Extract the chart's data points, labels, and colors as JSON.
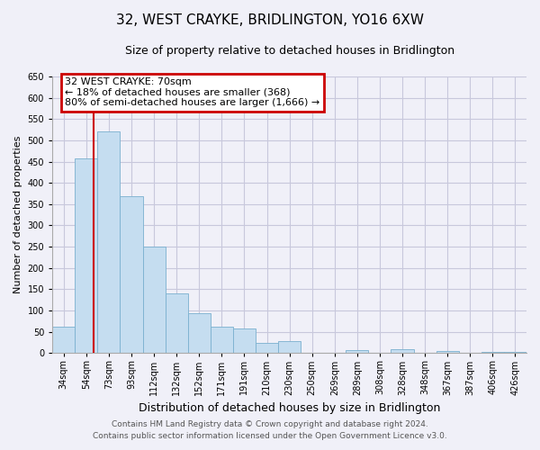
{
  "title": "32, WEST CRAYKE, BRIDLINGTON, YO16 6XW",
  "subtitle": "Size of property relative to detached houses in Bridlington",
  "xlabel": "Distribution of detached houses by size in Bridlington",
  "ylabel": "Number of detached properties",
  "categories": [
    "34sqm",
    "54sqm",
    "73sqm",
    "93sqm",
    "112sqm",
    "132sqm",
    "152sqm",
    "171sqm",
    "191sqm",
    "210sqm",
    "230sqm",
    "250sqm",
    "269sqm",
    "289sqm",
    "308sqm",
    "328sqm",
    "348sqm",
    "367sqm",
    "387sqm",
    "406sqm",
    "426sqm"
  ],
  "values": [
    62,
    457,
    522,
    368,
    250,
    140,
    93,
    62,
    57,
    25,
    28,
    0,
    0,
    8,
    0,
    10,
    0,
    5,
    0,
    3,
    3
  ],
  "bar_color": "#c5ddf0",
  "bar_edge_color": "#7ab0cf",
  "property_line_label": "32 WEST CRAYKE: 70sqm",
  "annotation_line1": "← 18% of detached houses are smaller (368)",
  "annotation_line2": "80% of semi-detached houses are larger (1,666) →",
  "annotation_box_color": "#ffffff",
  "annotation_box_edge": "#cc0000",
  "ylim": [
    0,
    650
  ],
  "yticks": [
    0,
    50,
    100,
    150,
    200,
    250,
    300,
    350,
    400,
    450,
    500,
    550,
    600,
    650
  ],
  "red_line_color": "#cc0000",
  "footer_line1": "Contains HM Land Registry data © Crown copyright and database right 2024.",
  "footer_line2": "Contains public sector information licensed under the Open Government Licence v3.0.",
  "bg_color": "#f0f0f8",
  "grid_color": "#c8c8dc",
  "title_fontsize": 11,
  "subtitle_fontsize": 9,
  "xlabel_fontsize": 9,
  "ylabel_fontsize": 8,
  "tick_fontsize": 7,
  "footer_fontsize": 6.5,
  "ann_fontsize": 8
}
